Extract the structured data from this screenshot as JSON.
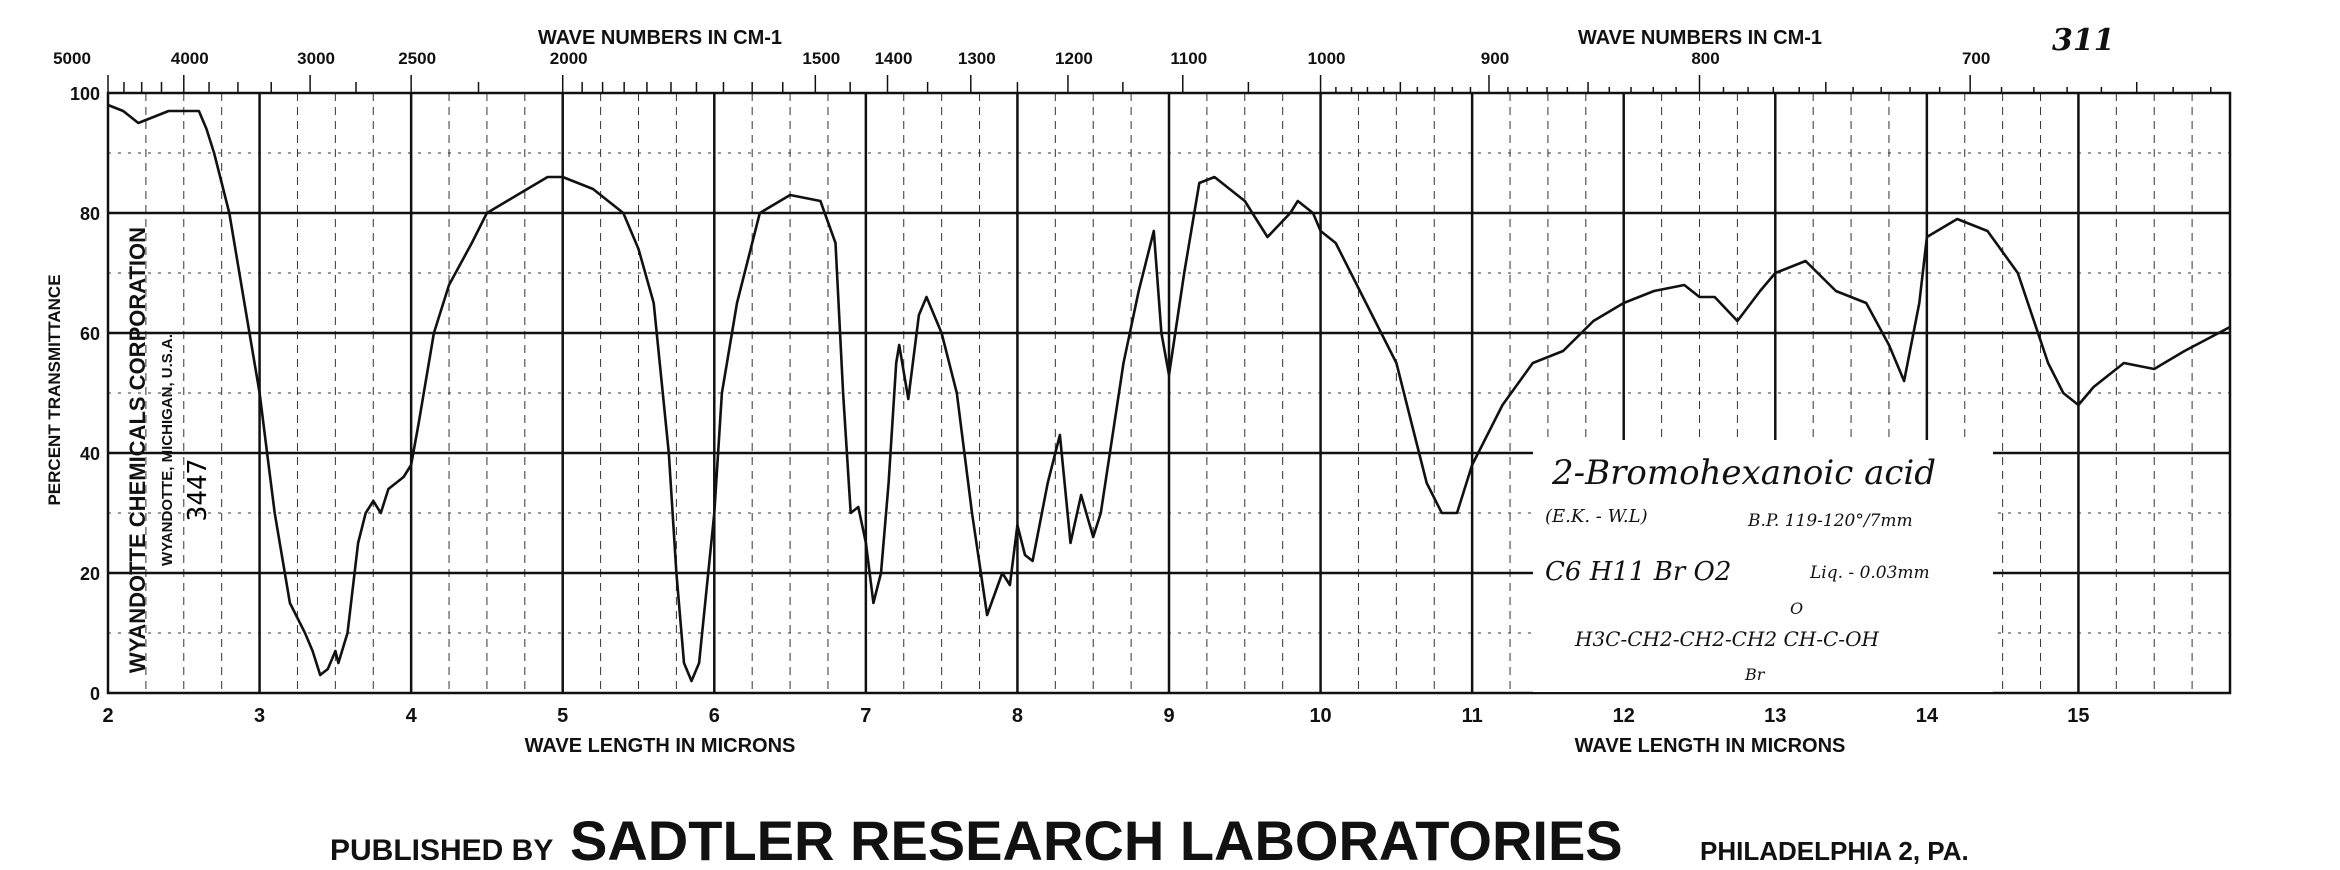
{
  "chart_data": {
    "type": "line",
    "title": "2-Bromohexanoic acid",
    "sheet_number": "311",
    "xlabel": "WAVE LENGTH IN MICRONS",
    "x2label": "WAVE NUMBERS IN CM-1",
    "ylabel": "PERCENT TRANSMITTANCE",
    "xlim": [
      2,
      16
    ],
    "ylim": [
      0,
      100
    ],
    "grid": true,
    "x_ticks": [
      "2",
      "3",
      "4",
      "5",
      "6",
      "7",
      "8",
      "9",
      "10",
      "11",
      "12",
      "13",
      "14",
      "15"
    ],
    "y_ticks": [
      "0",
      "20",
      "40",
      "60",
      "80",
      "100"
    ],
    "wavenumber_ticks": [
      "5000",
      "4000",
      "3000",
      "2500",
      "2000",
      "1500",
      "1400",
      "1300",
      "1200",
      "1100",
      "1000",
      "900",
      "800",
      "700"
    ],
    "series": [
      {
        "name": "2-Bromohexanoic acid spectrum",
        "x": [
          2.0,
          2.1,
          2.2,
          2.3,
          2.4,
          2.5,
          2.6,
          2.65,
          2.7,
          2.8,
          2.9,
          3.0,
          3.05,
          3.1,
          3.2,
          3.3,
          3.35,
          3.4,
          3.45,
          3.5,
          3.52,
          3.58,
          3.65,
          3.7,
          3.75,
          3.8,
          3.85,
          3.95,
          4.0,
          4.05,
          4.15,
          4.25,
          4.4,
          4.5,
          4.7,
          4.9,
          5.0,
          5.2,
          5.4,
          5.5,
          5.6,
          5.7,
          5.75,
          5.8,
          5.85,
          5.9,
          6.0,
          6.05,
          6.15,
          6.3,
          6.5,
          6.7,
          6.8,
          6.85,
          6.9,
          6.95,
          7.0,
          7.05,
          7.1,
          7.15,
          7.2,
          7.22,
          7.28,
          7.35,
          7.4,
          7.5,
          7.6,
          7.7,
          7.8,
          7.9,
          7.95,
          8.0,
          8.05,
          8.1,
          8.2,
          8.28,
          8.35,
          8.42,
          8.5,
          8.55,
          8.7,
          8.8,
          8.9,
          8.95,
          9.0,
          9.1,
          9.2,
          9.3,
          9.4,
          9.5,
          9.6,
          9.65,
          9.8,
          9.85,
          9.95,
          10.0,
          10.1,
          10.3,
          10.5,
          10.6,
          10.7,
          10.8,
          10.9,
          11.0,
          11.2,
          11.4,
          11.6,
          11.8,
          12.0,
          12.2,
          12.4,
          12.5,
          12.6,
          12.75,
          12.9,
          13.0,
          13.2,
          13.4,
          13.6,
          13.75,
          13.85,
          13.95,
          14.0,
          14.2,
          14.4,
          14.6,
          14.8,
          14.9,
          15.0,
          15.1,
          15.3,
          15.5,
          15.7,
          16.0
        ],
        "y": [
          98,
          97,
          95,
          96,
          97,
          97,
          97,
          94,
          90,
          80,
          65,
          50,
          40,
          30,
          15,
          10,
          7,
          3,
          4,
          7,
          5,
          10,
          25,
          30,
          32,
          30,
          34,
          36,
          38,
          45,
          60,
          68,
          75,
          80,
          83,
          86,
          86,
          84,
          80,
          74,
          65,
          40,
          20,
          5,
          2,
          5,
          30,
          50,
          65,
          80,
          83,
          82,
          75,
          50,
          30,
          31,
          25,
          15,
          20,
          35,
          55,
          58,
          49,
          63,
          66,
          60,
          50,
          30,
          13,
          20,
          18,
          28,
          23,
          22,
          35,
          43,
          25,
          33,
          26,
          30,
          55,
          67,
          77,
          60,
          53,
          70,
          85,
          86,
          84,
          82,
          78,
          76,
          80,
          82,
          80,
          77,
          75,
          65,
          55,
          45,
          35,
          30,
          30,
          38,
          48,
          55,
          57,
          62,
          65,
          67,
          68,
          66,
          66,
          62,
          67,
          70,
          72,
          67,
          65,
          58,
          52,
          65,
          76,
          79,
          77,
          70,
          55,
          50,
          48,
          51,
          55,
          54,
          57,
          61
        ]
      }
    ]
  },
  "stamp": {
    "company": "WYANDOTTE CHEMICALS CORPORATION",
    "location": "WYANDOTTE, MICHIGAN, U.S.A.",
    "number": "3447"
  },
  "annotation": {
    "name": "2-Bromohexanoic acid",
    "initials": "(E.K. - W.L)",
    "bp": "B.P. 119-120°/7mm",
    "formula": "C6 H11 Br O2",
    "sample": "Liq. - 0.03mm",
    "structure": "H3C-CH2-CH2-CH2 CH-C-OH",
    "carbonyl": "O",
    "substituent": "Br"
  },
  "footer": {
    "published_by": "PUBLISHED BY",
    "publisher": "SADTLER RESEARCH LABORATORIES",
    "city": "PHILADELPHIA 2, PA."
  },
  "colors": {
    "ink": "#111111",
    "paper": "#ffffff"
  }
}
